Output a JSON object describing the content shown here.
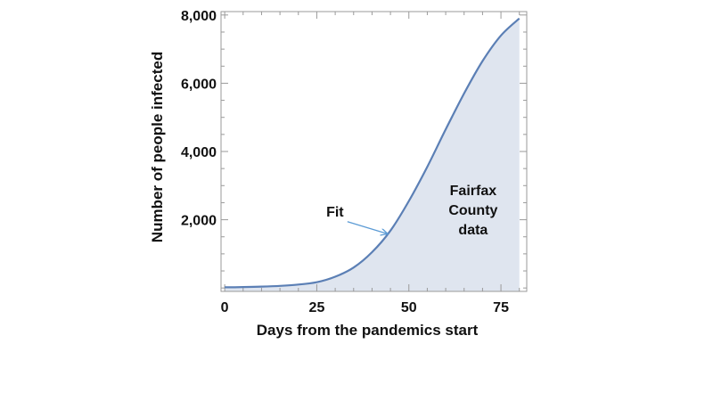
{
  "chart_data": {
    "type": "area",
    "xlabel": "Days from the pandemics start",
    "ylabel": "Number of people infected",
    "xlim": [
      -1,
      82
    ],
    "ylim": [
      -100,
      8100
    ],
    "x_ticks": [
      0,
      25,
      50,
      75
    ],
    "x_tick_labels": [
      "0",
      "25",
      "50",
      "75"
    ],
    "y_ticks": [
      2000,
      4000,
      6000,
      8000
    ],
    "y_tick_labels": [
      "2,000",
      "4,000",
      "6,000",
      "8,000"
    ],
    "grid": false,
    "series": [
      {
        "name": "Fit",
        "type": "line",
        "color": "#5b7fb5",
        "x": [
          0,
          5,
          10,
          15,
          20,
          25,
          30,
          35,
          40,
          45,
          50,
          55,
          60,
          65,
          70,
          75,
          80
        ],
        "y": [
          20,
          27,
          40,
          62,
          100,
          170,
          330,
          600,
          1050,
          1680,
          2550,
          3550,
          4650,
          5700,
          6650,
          7400,
          7900
        ]
      },
      {
        "name": "Fairfax County data",
        "type": "area",
        "color": "#dfe5ef",
        "x": [
          0,
          5,
          10,
          15,
          20,
          25,
          30,
          35,
          40,
          45,
          50,
          55,
          60,
          65,
          70,
          75,
          80
        ],
        "y": [
          20,
          27,
          40,
          62,
          100,
          170,
          330,
          600,
          1050,
          1680,
          2550,
          3550,
          4650,
          5700,
          6650,
          7400,
          7900
        ]
      }
    ],
    "annotations": [
      {
        "text": "Fit",
        "x": 28,
        "y": 2100,
        "arrow_to": [
          45,
          1480
        ]
      },
      {
        "lines": [
          "Fairfax",
          "County",
          "data"
        ],
        "x": 66,
        "y": 2300
      }
    ]
  }
}
